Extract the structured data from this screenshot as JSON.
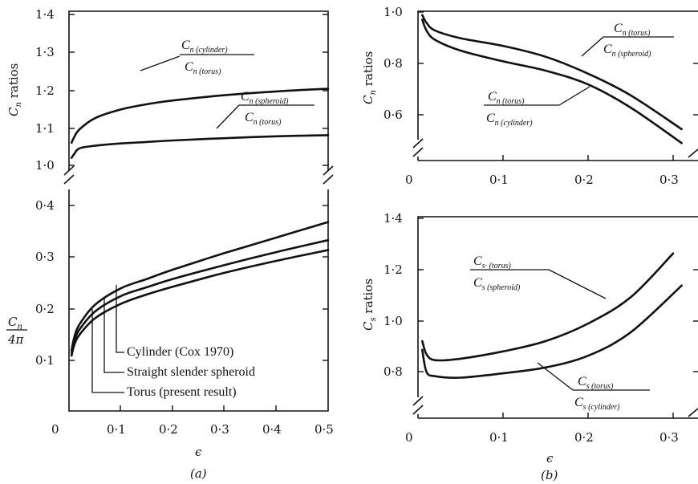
{
  "panel_a": {
    "caption": "(a)",
    "xlabel": "ϵ",
    "x_ticks": [
      "0",
      "0·1",
      "0·2",
      "0·3",
      "0·4",
      "0·5"
    ],
    "upper": {
      "ylabel_main": "C",
      "ylabel_sub": "n",
      "ylabel_rest": " ratios",
      "y_ticks": [
        "1·0",
        "1·1",
        "1·2",
        "1·3",
        "1·4"
      ],
      "frac1": {
        "num_main": "C",
        "num_sub": "n (cylinder)",
        "den_main": "C",
        "den_sub": "n (torus)"
      },
      "frac2": {
        "num_main": "C",
        "num_sub": "n (spheroid)",
        "den_main": "C",
        "den_sub": "n (torus)"
      }
    },
    "lower": {
      "ylabel_num": "C",
      "ylabel_num_sub": "n",
      "ylabel_den": "4π",
      "y_ticks": [
        "0·1",
        "0·2",
        "0·3",
        "0·4"
      ],
      "legend": [
        "Cylinder (Cox 1970)",
        "Straight slender spheroid",
        "Torus (present result)"
      ]
    }
  },
  "panel_b": {
    "caption": "(b)",
    "xlabel": "ϵ",
    "x_ticks": [
      "0",
      "0·1",
      "0·2",
      "0·3"
    ],
    "upper": {
      "ylabel_main": "C",
      "ylabel_sub": "n",
      "ylabel_rest": " ratios",
      "y_ticks": [
        "0·6",
        "0·8",
        "1·0"
      ],
      "frac1": {
        "num_main": "C",
        "num_sub": "n (torus)",
        "den_main": "C",
        "den_sub": "n (spheroid)"
      },
      "frac2": {
        "num_main": "C",
        "num_sub": "n (torus)",
        "den_main": "C",
        "den_sub": "n (cylinder)"
      }
    },
    "lower": {
      "ylabel_main": "C",
      "ylabel_sub": "s",
      "ylabel_rest": " ratios",
      "y_ticks": [
        "0·8",
        "1·0",
        "1·2",
        "1·4"
      ],
      "frac1": {
        "num_main": "C",
        "num_sub": "s· (torus)",
        "den_main": "C",
        "den_sub": "s (spheroid)"
      },
      "frac2": {
        "num_main": "C",
        "num_sub": "s (torus)",
        "den_main": "C",
        "den_sub": "s (cylinder)"
      }
    }
  },
  "chart_data": [
    {
      "type": "line",
      "panel": "a-upper",
      "ylabel": "Cn ratios",
      "xlim": [
        0,
        0.5
      ],
      "ylim": [
        1.0,
        1.4
      ],
      "series": [
        {
          "name": "Cn (cylinder)/Cn (torus)",
          "x": [
            0.005,
            0.01,
            0.02,
            0.05,
            0.1,
            0.15,
            0.2,
            0.3,
            0.4,
            0.5
          ],
          "y": [
            1.06,
            1.075,
            1.095,
            1.125,
            1.148,
            1.162,
            1.172,
            1.186,
            1.196,
            1.203
          ]
        },
        {
          "name": "Cn (spheroid)/Cn (torus)",
          "x": [
            0.005,
            0.01,
            0.02,
            0.05,
            0.1,
            0.15,
            0.2,
            0.3,
            0.4,
            0.5
          ],
          "y": [
            1.02,
            1.03,
            1.045,
            1.052,
            1.058,
            1.062,
            1.066,
            1.072,
            1.077,
            1.08
          ]
        }
      ]
    },
    {
      "type": "line",
      "panel": "a-lower",
      "ylabel": "Cn/4π",
      "xlim": [
        0,
        0.5
      ],
      "ylim": [
        0,
        0.4
      ],
      "series": [
        {
          "name": "Cylinder (Cox 1970)",
          "x": [
            0.005,
            0.01,
            0.02,
            0.05,
            0.1,
            0.15,
            0.2,
            0.3,
            0.4,
            0.5
          ],
          "y": [
            0.12,
            0.145,
            0.17,
            0.208,
            0.24,
            0.258,
            0.276,
            0.308,
            0.338,
            0.368
          ]
        },
        {
          "name": "Straight slender spheroid",
          "x": [
            0.005,
            0.01,
            0.02,
            0.05,
            0.1,
            0.15,
            0.2,
            0.3,
            0.4,
            0.5
          ],
          "y": [
            0.115,
            0.138,
            0.16,
            0.195,
            0.225,
            0.242,
            0.258,
            0.285,
            0.31,
            0.333
          ]
        },
        {
          "name": "Torus (present result)",
          "x": [
            0.005,
            0.01,
            0.02,
            0.05,
            0.1,
            0.15,
            0.2,
            0.3,
            0.4,
            0.5
          ],
          "y": [
            0.11,
            0.13,
            0.15,
            0.182,
            0.21,
            0.228,
            0.243,
            0.27,
            0.293,
            0.314
          ]
        }
      ]
    },
    {
      "type": "line",
      "panel": "b-upper",
      "ylabel": "Cn ratios",
      "xlim": [
        0,
        0.3
      ],
      "ylim": [
        0.5,
        1.0
      ],
      "series": [
        {
          "name": "Cn(torus)/Cn(spheroid)",
          "x": [
            0.005,
            0.01,
            0.02,
            0.05,
            0.1,
            0.15,
            0.2,
            0.25,
            0.31
          ],
          "y": [
            0.99,
            0.965,
            0.94,
            0.915,
            0.89,
            0.855,
            0.8,
            0.73,
            0.62
          ]
        },
        {
          "name": "Cn (torus)/Cn (cylinder)",
          "x": [
            0.005,
            0.01,
            0.02,
            0.05,
            0.1,
            0.15,
            0.2,
            0.25,
            0.31
          ],
          "y": [
            0.975,
            0.94,
            0.91,
            0.875,
            0.84,
            0.81,
            0.765,
            0.69,
            0.575
          ]
        }
      ]
    },
    {
      "type": "line",
      "panel": "b-lower",
      "ylabel": "Cs ratios",
      "xlim": [
        0,
        0.3
      ],
      "ylim": [
        0.7,
        1.4
      ],
      "series": [
        {
          "name": "Cs (torus)/Cs (spheroid)",
          "x": [
            0.005,
            0.01,
            0.02,
            0.05,
            0.1,
            0.15,
            0.2,
            0.25,
            0.3
          ],
          "y": [
            0.98,
            0.935,
            0.915,
            0.92,
            0.945,
            0.98,
            1.04,
            1.13,
            1.28
          ]
        },
        {
          "name": "Cs (torus)/Cs (cylinder)",
          "x": [
            0.005,
            0.01,
            0.02,
            0.05,
            0.1,
            0.15,
            0.2,
            0.25,
            0.31
          ],
          "y": [
            0.95,
            0.875,
            0.86,
            0.855,
            0.87,
            0.89,
            0.93,
            1.01,
            1.17
          ]
        }
      ]
    }
  ]
}
